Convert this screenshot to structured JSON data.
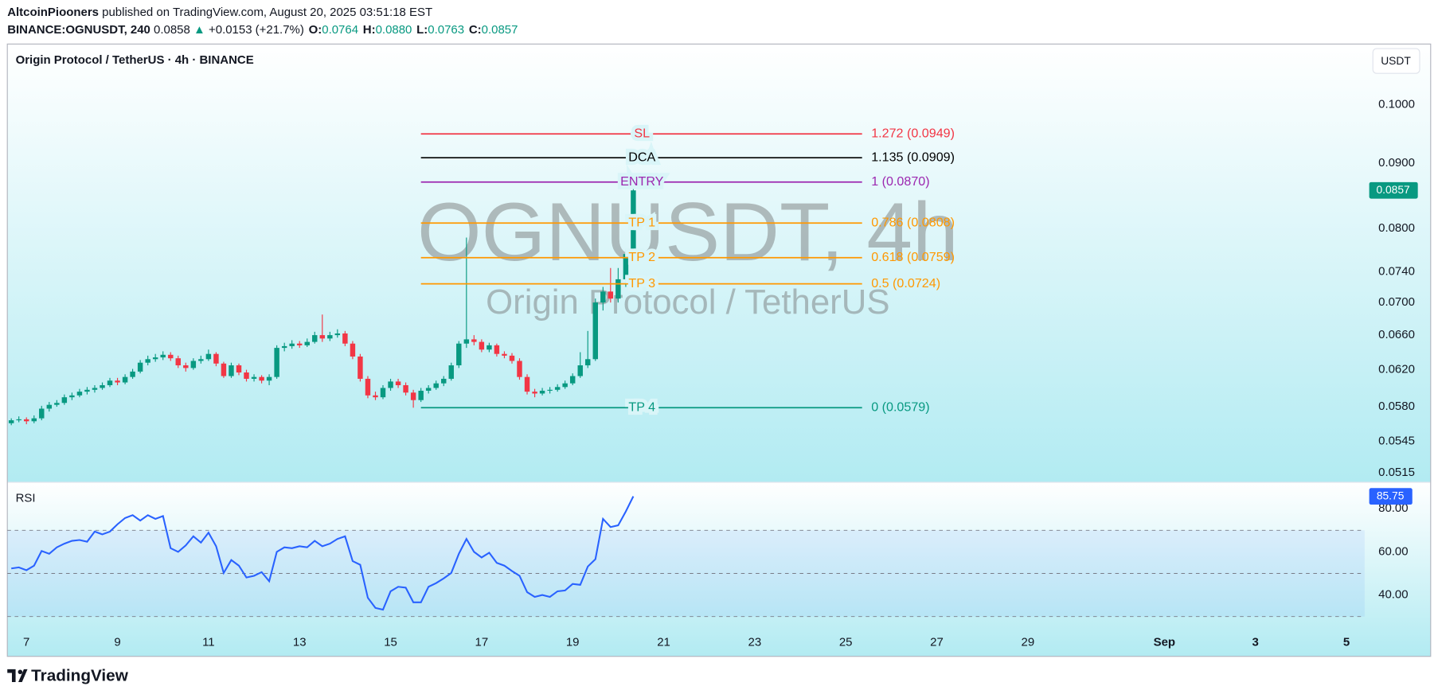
{
  "header": {
    "author": "AltcoinPiooners",
    "published": "published on TradingView.com, August 20, 2025 03:51:18 EST",
    "symbol": "BINANCE:OGNUSDT, 240",
    "price": "0.0858",
    "change": "+0.0153 (+21.7%)",
    "ohlc": [
      {
        "label": "O:",
        "value": "0.0764"
      },
      {
        "label": "H:",
        "value": "0.0880"
      },
      {
        "label": "L:",
        "value": "0.0763"
      },
      {
        "label": "C:",
        "value": "0.0857"
      }
    ]
  },
  "chart_data": [
    {
      "type": "candlestick",
      "title": "Origin Protocol / TetherUS · 4h · BINANCE",
      "watermark": "OGNUSDT, 4h",
      "watermark_subtitle": "Origin Protocol / TetherUS",
      "currency": "USDT",
      "log_scale": true,
      "up_color": "#089981",
      "down_color": "#f23645",
      "x": [
        6.667,
        6.833,
        7,
        7.167,
        7.333,
        7.5,
        7.667,
        7.833,
        8,
        8.167,
        8.333,
        8.5,
        8.667,
        8.833,
        9,
        9.167,
        9.333,
        9.5,
        9.667,
        9.833,
        10,
        10.167,
        10.333,
        10.5,
        10.667,
        10.833,
        11,
        11.167,
        11.333,
        11.5,
        11.667,
        11.833,
        12,
        12.167,
        12.333,
        12.5,
        12.667,
        12.833,
        13,
        13.167,
        13.333,
        13.5,
        13.667,
        13.833,
        14,
        14.167,
        14.333,
        14.5,
        14.667,
        14.833,
        15,
        15.167,
        15.333,
        15.5,
        15.667,
        15.833,
        16,
        16.167,
        16.333,
        16.5,
        16.667,
        16.833,
        17,
        17.167,
        17.333,
        17.5,
        17.667,
        17.833,
        18,
        18.167,
        18.333,
        18.5,
        18.667,
        18.833,
        19,
        19.167,
        19.333,
        19.5,
        19.667,
        19.833,
        20,
        20.167,
        20.333
      ],
      "open": [
        0.0563,
        0.0566,
        0.0567,
        0.0565,
        0.0568,
        0.0578,
        0.0582,
        0.0584,
        0.059,
        0.0592,
        0.0596,
        0.0598,
        0.06,
        0.0603,
        0.0608,
        0.0606,
        0.0612,
        0.0618,
        0.0628,
        0.0632,
        0.0634,
        0.0637,
        0.0633,
        0.0625,
        0.0622,
        0.063,
        0.0632,
        0.0638,
        0.0627,
        0.0613,
        0.0625,
        0.0617,
        0.061,
        0.0612,
        0.0608,
        0.0612,
        0.0645,
        0.0647,
        0.065,
        0.0648,
        0.0652,
        0.066,
        0.0656,
        0.066,
        0.0662,
        0.065,
        0.0635,
        0.061,
        0.0592,
        0.059,
        0.06,
        0.0607,
        0.0603,
        0.0595,
        0.0587,
        0.0597,
        0.06,
        0.0605,
        0.061,
        0.0625,
        0.065,
        0.0655,
        0.0652,
        0.0643,
        0.0648,
        0.0638,
        0.0636,
        0.063,
        0.0612,
        0.0596,
        0.0594,
        0.0597,
        0.0598,
        0.0601,
        0.0605,
        0.0613,
        0.0625,
        0.0632,
        0.07,
        0.0714,
        0.0705,
        0.073,
        0.0764
      ],
      "high": [
        0.0568,
        0.057,
        0.0569,
        0.0571,
        0.0581,
        0.0585,
        0.0587,
        0.0593,
        0.0595,
        0.0599,
        0.0601,
        0.0603,
        0.0606,
        0.0611,
        0.0611,
        0.0615,
        0.0621,
        0.0631,
        0.0636,
        0.0638,
        0.0641,
        0.064,
        0.0636,
        0.0628,
        0.0633,
        0.0636,
        0.0643,
        0.064,
        0.0629,
        0.0628,
        0.0627,
        0.062,
        0.0615,
        0.0614,
        0.0615,
        0.0648,
        0.0651,
        0.0654,
        0.0653,
        0.0656,
        0.0664,
        0.0685,
        0.0664,
        0.0667,
        0.0665,
        0.0653,
        0.0638,
        0.0613,
        0.0596,
        0.0603,
        0.061,
        0.061,
        0.0606,
        0.0598,
        0.06,
        0.0603,
        0.0608,
        0.0613,
        0.0628,
        0.0653,
        0.0787,
        0.066,
        0.0655,
        0.0651,
        0.065,
        0.0641,
        0.0639,
        0.0633,
        0.0615,
        0.0599,
        0.06,
        0.0601,
        0.0604,
        0.0608,
        0.0616,
        0.064,
        0.0665,
        0.0705,
        0.072,
        0.0745,
        0.0745,
        0.077,
        0.088
      ],
      "low": [
        0.0561,
        0.0564,
        0.0562,
        0.0563,
        0.0566,
        0.0575,
        0.058,
        0.0582,
        0.0587,
        0.059,
        0.0593,
        0.0595,
        0.0598,
        0.0601,
        0.0603,
        0.0604,
        0.061,
        0.0616,
        0.0625,
        0.0629,
        0.0631,
        0.063,
        0.0622,
        0.0618,
        0.062,
        0.0627,
        0.063,
        0.0624,
        0.0611,
        0.0611,
        0.0614,
        0.0607,
        0.0607,
        0.0605,
        0.0603,
        0.061,
        0.0641,
        0.0644,
        0.0645,
        0.0646,
        0.065,
        0.0652,
        0.0653,
        0.0657,
        0.0647,
        0.0632,
        0.0607,
        0.0589,
        0.0587,
        0.0588,
        0.0597,
        0.06,
        0.0592,
        0.0579,
        0.0585,
        0.0594,
        0.0598,
        0.0602,
        0.0608,
        0.0622,
        0.0645,
        0.0648,
        0.064,
        0.064,
        0.0635,
        0.0633,
        0.0627,
        0.0609,
        0.0593,
        0.059,
        0.0592,
        0.0594,
        0.0596,
        0.0599,
        0.0603,
        0.0611,
        0.0622,
        0.063,
        0.069,
        0.07,
        0.07,
        0.072,
        0.0763
      ],
      "close": [
        0.0566,
        0.0567,
        0.0565,
        0.0568,
        0.0578,
        0.0582,
        0.0584,
        0.059,
        0.0592,
        0.0596,
        0.0598,
        0.06,
        0.0603,
        0.0608,
        0.0606,
        0.0612,
        0.0618,
        0.0628,
        0.0632,
        0.0634,
        0.0637,
        0.0633,
        0.0625,
        0.0622,
        0.063,
        0.0632,
        0.0638,
        0.0627,
        0.0613,
        0.0625,
        0.0617,
        0.061,
        0.0612,
        0.0608,
        0.0612,
        0.0645,
        0.0647,
        0.065,
        0.0648,
        0.0652,
        0.066,
        0.0656,
        0.066,
        0.0662,
        0.065,
        0.0635,
        0.061,
        0.0592,
        0.059,
        0.06,
        0.0607,
        0.0603,
        0.0595,
        0.0587,
        0.0597,
        0.06,
        0.0605,
        0.061,
        0.0625,
        0.065,
        0.0655,
        0.0652,
        0.0643,
        0.0648,
        0.0638,
        0.0636,
        0.063,
        0.0612,
        0.0596,
        0.0594,
        0.0597,
        0.0598,
        0.0601,
        0.0605,
        0.0613,
        0.0625,
        0.0632,
        0.07,
        0.0714,
        0.0705,
        0.073,
        0.0764,
        0.0857
      ],
      "xlim": [
        6.58,
        36.4
      ],
      "xticks": [
        7,
        9,
        11,
        13,
        15,
        17,
        19,
        21,
        23,
        25,
        27,
        29,
        {
          "value": 32,
          "label": "Sep"
        },
        {
          "value": 34,
          "label": "3"
        },
        {
          "value": 36,
          "label": "5"
        }
      ],
      "ylim": [
        0.0507,
        0.1116
      ],
      "yticks": [
        {
          "value": 0.1,
          "label": "0.1000"
        },
        {
          "value": 0.09,
          "label": "0.0900"
        },
        {
          "value": 0.08,
          "label": "0.0800"
        },
        {
          "value": 0.074,
          "label": "0.0740"
        },
        {
          "value": 0.07,
          "label": "0.0700"
        },
        {
          "value": 0.066,
          "label": "0.0660"
        },
        {
          "value": 0.062,
          "label": "0.0620"
        },
        {
          "value": 0.058,
          "label": "0.0580"
        },
        {
          "value": 0.0545,
          "label": "0.0545"
        },
        {
          "value": 0.0515,
          "label": "0.0515"
        }
      ],
      "levels": [
        {
          "name": "SL",
          "label": "1.272 (0.0949)",
          "price": 0.0949,
          "color": "#f23645"
        },
        {
          "name": "DCA",
          "label": "1.135 (0.0909)",
          "price": 0.0909,
          "color": "#000000"
        },
        {
          "name": "ENTRY",
          "label": "1 (0.0870)",
          "price": 0.087,
          "color": "#9c27b0"
        },
        {
          "name": "TP 1",
          "label": "0.786 (0.0808)",
          "price": 0.0808,
          "color": "#ff9800"
        },
        {
          "name": "TP 2",
          "label": "0.618 (0.0759)",
          "price": 0.0759,
          "color": "#ff9800"
        },
        {
          "name": "TP 3",
          "label": "0.5 (0.0724)",
          "price": 0.0724,
          "color": "#ff9800"
        },
        {
          "name": "TP 4",
          "label": "0 (0.0579)",
          "price": 0.0579,
          "color": "#089981"
        }
      ]
    },
    {
      "type": "line",
      "title": "RSI",
      "color": "#2962ff",
      "value_color": "#2962ff",
      "values": [
        52.3,
        52.8,
        51.5,
        53.6,
        60.4,
        59.1,
        62.1,
        63.8,
        65.1,
        65.5,
        64.7,
        69.4,
        68.1,
        69.4,
        72.8,
        75.7,
        77,
        74.5,
        77,
        75.3,
        76.6,
        61.7,
        60,
        63,
        67.2,
        64.3,
        68.9,
        62.6,
        50.2,
        56.2,
        53.6,
        48.1,
        48.9,
        50.6,
        46.4,
        60,
        62.1,
        61.7,
        62.6,
        62.1,
        65.1,
        62.6,
        63.8,
        66,
        67.2,
        55.7,
        54,
        38.7,
        34,
        33.2,
        41.7,
        43.8,
        43.4,
        36.6,
        36.6,
        43.8,
        45.5,
        47.7,
        50.2,
        59.1,
        66,
        60,
        57.4,
        59.6,
        54.9,
        53.6,
        51.1,
        48.9,
        41.3,
        39.1,
        40,
        39.1,
        41.7,
        42.1,
        45.1,
        44.7,
        53.2,
        56.6,
        75.3,
        71.5,
        72.3,
        78.7,
        85.75
      ],
      "ylim": [
        24.7,
        92.3
      ],
      "yticks": [
        {
          "value": 80,
          "label": "80.00"
        },
        {
          "value": 60,
          "label": "60.00"
        },
        {
          "value": 40,
          "label": "40.00"
        }
      ],
      "levels": [
        70,
        50,
        30
      ]
    }
  ],
  "footer": {
    "brand": "TradingView"
  }
}
